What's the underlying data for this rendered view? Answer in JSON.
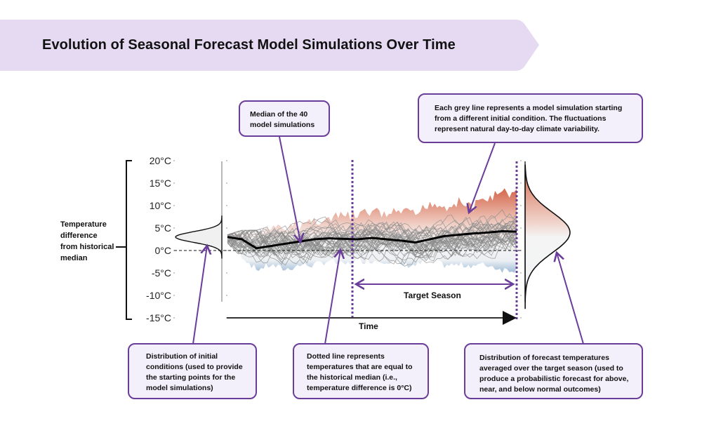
{
  "title": "Evolution of Seasonal Forecast Model Simulations Over Time",
  "colors": {
    "banner": "#e6daf3",
    "accent": "#6a3d9a",
    "callout_fill": "#f4f0fb",
    "warm": "#d4654a",
    "cool": "#a9c4dd",
    "median_line": "#000000",
    "simulation_line": "#8a8a8a"
  },
  "y_axis": {
    "label": "Temperature difference from historical median",
    "ticks": [
      "20°C",
      "15°C",
      "10°C",
      "5°C",
      "0°C",
      "-5°C",
      "-10°C",
      "-15°C"
    ],
    "tick_values": [
      20,
      15,
      10,
      5,
      0,
      -5,
      -10,
      -15
    ],
    "range": [
      -15,
      20
    ]
  },
  "x_axis": {
    "label": "Time"
  },
  "target_season_label": "Target Season",
  "chart_data": {
    "type": "line",
    "title": "Evolution of Seasonal Forecast Model Simulations Over Time",
    "xlabel": "Time",
    "ylabel": "Temperature difference from historical median",
    "ylim": [
      -15,
      20
    ],
    "y_ticks": [
      "20°C",
      "15°C",
      "10°C",
      "5°C",
      "0°C",
      "-5°C",
      "-10°C",
      "-15°C"
    ],
    "simulation_count": 40,
    "reference_line": {
      "value": 0,
      "style": "dashed",
      "meaning": "historical median"
    },
    "median_series": {
      "name": "Median of the 40 model simulations",
      "x": [
        0,
        0.05,
        0.1,
        0.15,
        0.2,
        0.25,
        0.3,
        0.35,
        0.4,
        0.45,
        0.5,
        0.55,
        0.6,
        0.65,
        0.7,
        0.75,
        0.8,
        0.85,
        0.9,
        0.95,
        1.0
      ],
      "values": [
        3,
        2.5,
        0.5,
        1,
        1.5,
        2,
        2.5,
        2.7,
        2.6,
        2.5,
        2.8,
        2.5,
        2.2,
        1.8,
        2.5,
        3.2,
        3.5,
        3.8,
        4,
        4.3,
        4.2
      ]
    },
    "envelope_max": [
      4,
      5,
      5,
      6,
      6,
      7,
      8,
      8,
      9,
      9,
      10,
      9,
      10,
      9,
      12,
      11,
      12,
      11,
      13,
      14,
      14
    ],
    "envelope_min": [
      1,
      -2,
      -5,
      -4,
      -5,
      -4,
      -4,
      -3,
      -4,
      -3,
      -3,
      -3,
      -4,
      -4,
      -3,
      -4,
      -4,
      -4,
      -4,
      -5,
      -5
    ],
    "initial_distribution": {
      "center": 3,
      "spread": 1.2
    },
    "forecast_distribution": {
      "center": 4,
      "spread": 4.5
    },
    "target_season": {
      "start": 0.45,
      "end": 1.0
    }
  },
  "callouts": [
    {
      "id": "median",
      "text": "Median of the 40 model simulations"
    },
    {
      "id": "grey-lines",
      "text": "Each grey line represents a model simulation starting from a different initial condition. The fluctuations represent natural day-to-day climate variability."
    },
    {
      "id": "initial",
      "text": "Distribution of initial conditions (used to provide the starting points for the model simulations)"
    },
    {
      "id": "dotted",
      "text": "Dotted line represents temperatures that are equal to the historical median (i.e., temperature difference is 0°C)"
    },
    {
      "id": "forecast",
      "text": "Distribution of forecast temperatures averaged over the target season (used to produce a probabilistic forecast for above, near, and below normal outcomes)"
    }
  ]
}
